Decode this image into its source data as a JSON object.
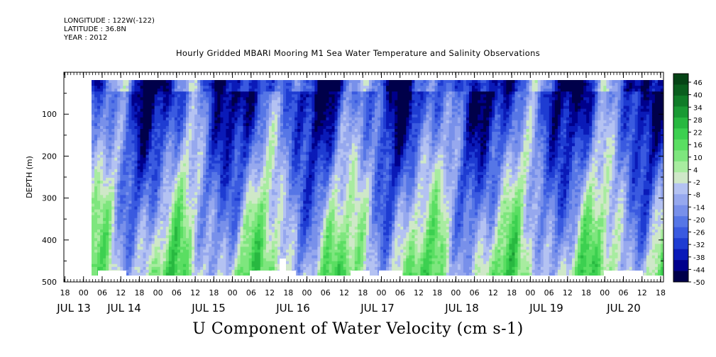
{
  "header": {
    "longitude": "LONGITUDE : 122W(-122)",
    "latitude": "LATITUDE : 36.8N",
    "year": "YEAR : 2012"
  },
  "chart_data": {
    "type": "heatmap",
    "title": "Hourly Gridded MBARI Mooring M1 Sea Water Temperature and Salinity Observations",
    "xlabel": "U Component of Water Velocity (cm s-1)",
    "ylabel": "DEPTH (m)",
    "ylim": [
      500,
      0
    ],
    "yticks": [
      "100",
      "200",
      "300",
      "400",
      "500"
    ],
    "x_hour_ticks": [
      "18",
      "00",
      "06",
      "12",
      "18",
      "00",
      "06",
      "12",
      "18",
      "00",
      "06",
      "12",
      "18",
      "00",
      "06",
      "12",
      "18",
      "00",
      "06",
      "12",
      "18",
      "00",
      "06",
      "12",
      "18",
      "00",
      "06",
      "12",
      "18",
      "00",
      "06",
      "12",
      "18"
    ],
    "x_day_labels": [
      "JUL 13",
      "JUL 14",
      "JUL 15",
      "JUL 16",
      "JUL 17",
      "JUL 18",
      "JUL 19",
      "JUL 20"
    ],
    "colorbar": {
      "labels": [
        "46",
        "40",
        "34",
        "28",
        "22",
        "16",
        "10",
        "4",
        "-2",
        "-8",
        "-14",
        "-20",
        "-26",
        "-32",
        "-38",
        "-44",
        "-50"
      ],
      "min": -50,
      "max": 52,
      "colors": [
        "#00004a",
        "#00008c",
        "#0a1ab8",
        "#1e3cd2",
        "#3a5ae0",
        "#5676e6",
        "#7890ea",
        "#96a8ee",
        "#b4c2f2",
        "#cfe8c8",
        "#a8eca0",
        "#7ee67e",
        "#5ade62",
        "#3cd050",
        "#28b840",
        "#1a9a34",
        "#107c28",
        "#0a5e1e",
        "#064416"
      ]
    },
    "field_description": "depth-time section of eastward velocity; negative (blue) values dominate near surface and mid-water; positive (green) values dominate below ~250 m; white gaps indicate missing data near bottom"
  }
}
